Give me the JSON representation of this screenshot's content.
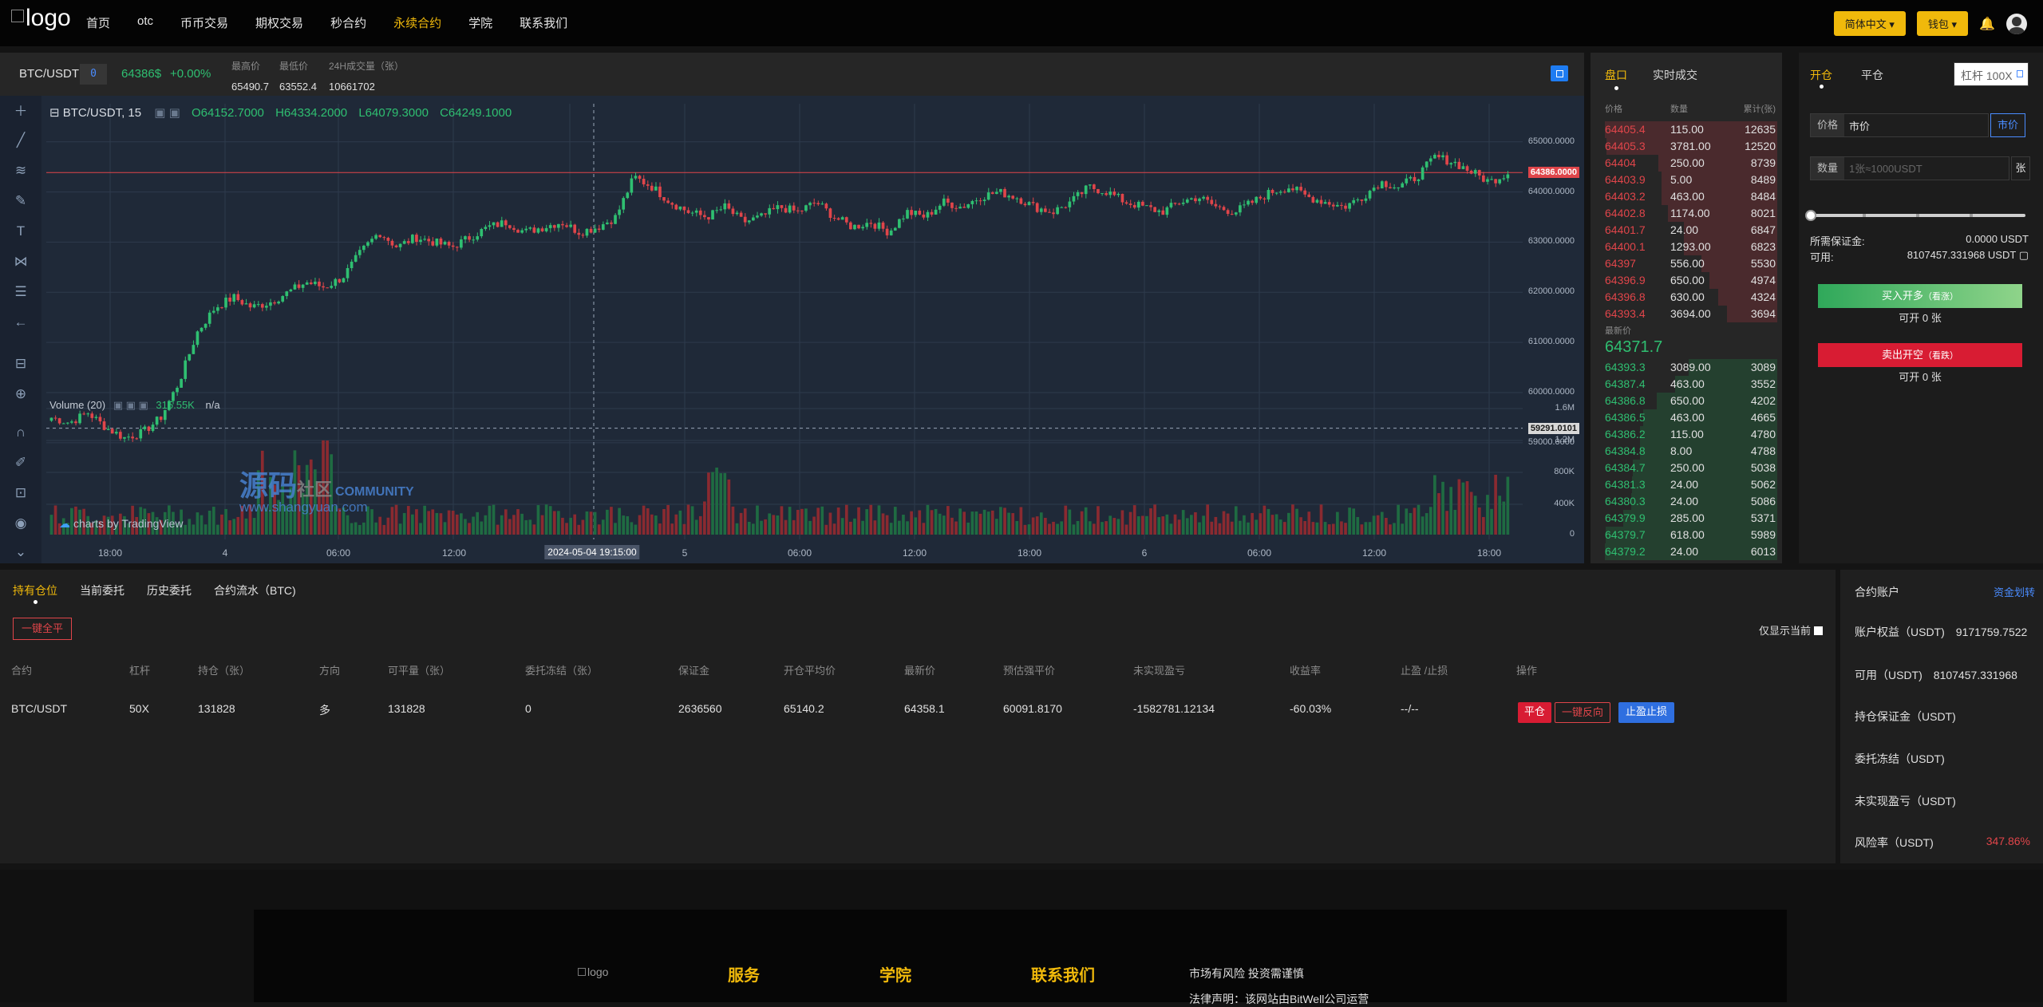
{
  "nav": {
    "logo_text": "logo",
    "items": [
      "首页",
      "otc",
      "币币交易",
      "期权交易",
      "秒合约",
      "永续合约",
      "学院",
      "联系我们"
    ],
    "active_index": 5,
    "lang_button": "简体中文",
    "wallet_button": "钱包"
  },
  "ticker": {
    "pair": "BTC/USDT",
    "tag": "0",
    "price": "64386$",
    "change": "+0.00%",
    "high_label": "最高价",
    "high_value": "65490.7",
    "low_label": "最低价",
    "low_value": "63552.4",
    "vol_label": "24H成交量（张）",
    "vol_value": "10661702"
  },
  "chart": {
    "symbol": "BTC/USDT, 15",
    "open": "O64152.7000",
    "high": "H64334.2000",
    "low": "L64079.3000",
    "close": "C64249.1000",
    "volume_label": "Volume (20)",
    "volume_value": "315.55K",
    "volume_na": "n/a",
    "attribution": "charts by TradingView",
    "watermark_cn": "源码",
    "watermark_cn2": "社区",
    "watermark_en": "COMMUNITY",
    "watermark_url": "www.shangyuan.com",
    "price_ticks": [
      "65000.0000",
      "64000.0000",
      "63000.0000",
      "62000.0000",
      "61000.0000",
      "60000.0000",
      "59000.0000"
    ],
    "last_tag": "64386.0000",
    "cross_tag": "59291.0101",
    "vol_ticks": [
      "1.6M",
      "1.2M",
      "800K",
      "400K",
      "0"
    ],
    "time_ticks": [
      "18:00",
      "4",
      "06:00",
      "12:00",
      "2024-05-04 19:15:00",
      "5",
      "06:00",
      "12:00",
      "18:00",
      "6",
      "06:00",
      "12:00",
      "18:00"
    ]
  },
  "chart_data": {
    "type": "candlestick",
    "title": "BTC/USDT, 15",
    "ylim": [
      58600,
      65600
    ],
    "volume_ylim": [
      0,
      1800000
    ],
    "close_series": [
      59500,
      59400,
      59600,
      59300,
      59100,
      59200,
      59500,
      60200,
      61200,
      61700,
      61900,
      61700,
      61800,
      62000,
      62200,
      62100,
      62300,
      62800,
      63200,
      62900,
      63100,
      63000,
      62900,
      63100,
      63300,
      63400,
      63200,
      63300,
      63400,
      63200,
      63300,
      63500,
      64300,
      64100,
      63800,
      63600,
      63500,
      63700,
      63400,
      63500,
      63700,
      63600,
      63800,
      63500,
      63300,
      63400,
      63200,
      63600,
      63500,
      63800,
      63700,
      63900,
      64000,
      63900,
      63700,
      63600,
      63800,
      64100,
      64000,
      63800,
      63700,
      63600,
      63800,
      63900,
      63700,
      63600,
      63800,
      64000,
      64100,
      63900,
      63800,
      63700,
      63900,
      64200,
      64100,
      64300,
      64700,
      64600,
      64400,
      64200,
      64382
    ]
  },
  "orderbook": {
    "tab_book": "盘口",
    "tab_trades": "实时成交",
    "col_price": "价格",
    "col_qty": "数量",
    "col_cum": "累计(张)",
    "asks": [
      {
        "p": "64405.4",
        "q": "115.00",
        "c": "12635"
      },
      {
        "p": "64405.3",
        "q": "3781.00",
        "c": "12520"
      },
      {
        "p": "64404",
        "q": "250.00",
        "c": "8739"
      },
      {
        "p": "64403.9",
        "q": "5.00",
        "c": "8489"
      },
      {
        "p": "64403.2",
        "q": "463.00",
        "c": "8484"
      },
      {
        "p": "64402.8",
        "q": "1174.00",
        "c": "8021"
      },
      {
        "p": "64401.7",
        "q": "24.00",
        "c": "6847"
      },
      {
        "p": "64400.1",
        "q": "1293.00",
        "c": "6823"
      },
      {
        "p": "64397",
        "q": "556.00",
        "c": "5530"
      },
      {
        "p": "64396.9",
        "q": "650.00",
        "c": "4974"
      },
      {
        "p": "64396.8",
        "q": "630.00",
        "c": "4324"
      },
      {
        "p": "64393.4",
        "q": "3694.00",
        "c": "3694"
      }
    ],
    "last_label": "最新价",
    "last_price": "64371.7",
    "bids": [
      {
        "p": "64393.3",
        "q": "3089.00",
        "c": "3089"
      },
      {
        "p": "64387.4",
        "q": "463.00",
        "c": "3552"
      },
      {
        "p": "64386.8",
        "q": "650.00",
        "c": "4202"
      },
      {
        "p": "64386.5",
        "q": "463.00",
        "c": "4665"
      },
      {
        "p": "64386.2",
        "q": "115.00",
        "c": "4780"
      },
      {
        "p": "64384.8",
        "q": "8.00",
        "c": "4788"
      },
      {
        "p": "64384.7",
        "q": "250.00",
        "c": "5038"
      },
      {
        "p": "64381.3",
        "q": "24.00",
        "c": "5062"
      },
      {
        "p": "64380.3",
        "q": "24.00",
        "c": "5086"
      },
      {
        "p": "64379.9",
        "q": "285.00",
        "c": "5371"
      },
      {
        "p": "64379.7",
        "q": "618.00",
        "c": "5989"
      },
      {
        "p": "64379.2",
        "q": "24.00",
        "c": "6013"
      }
    ]
  },
  "trade": {
    "tab_open": "开仓",
    "tab_close": "平仓",
    "leverage_placeholder": "杠杆 100X",
    "price_label": "价格",
    "price_value": "市价",
    "market_btn": "市价",
    "qty_label": "数量",
    "qty_placeholder": "1张≈1000USDT",
    "qty_unit": "张",
    "margin_label": "所需保证金:",
    "margin_value": "0.0000 USDT",
    "avail_label": "可用:",
    "avail_value": "8107457.331968 USDT",
    "buy_label": "买入开多",
    "buy_sub": "（看涨）",
    "buy_can": "可开 0 张",
    "sell_label": "卖出开空",
    "sell_sub": "（看跌）",
    "sell_can": "可开 0 张"
  },
  "positions": {
    "tabs": [
      "持有仓位",
      "当前委托",
      "历史委托",
      "合约流水（BTC)"
    ],
    "close_all": "一键全平",
    "only_current": "仅显示当前",
    "headers": [
      "合约",
      "杠杆",
      "持仓（张）",
      "方向",
      "可平量（张）",
      "委托冻结（张）",
      "保证金",
      "开仓平均价",
      "最新价",
      "预估强平价",
      "未实现盈亏",
      "收益率",
      "止盈 /止损",
      "操作"
    ],
    "row": [
      "BTC/USDT",
      "50X",
      "131828",
      "多",
      "131828",
      "0",
      "2636560",
      "65140.2",
      "64358.1",
      "60091.8170",
      "-1582781.12134",
      "-60.03%",
      "--/--"
    ],
    "btn_close": "平仓",
    "btn_reverse": "一键反向",
    "btn_tpsl": "止盈止损"
  },
  "account": {
    "title": "合约账户",
    "transfer": "资金划转",
    "equity_label": "账户权益（USDT)",
    "equity_value": "9171759.7522",
    "avail_label": "可用（USDT)",
    "avail_value": "8107457.331968",
    "margin_label": "持仓保证金（USDT)",
    "frozen_label": "委托冻结（USDT)",
    "upnl_label": "未实现盈亏（USDT)",
    "risk_label": "风险率（USDT)",
    "risk_value": "347.86%"
  },
  "footer": {
    "logo_alt": "logo",
    "col1": "服务",
    "col2": "学院",
    "col3": "联系我们",
    "note1": "市场有风险 投资需谨慎",
    "note2": "法律声明：该网站由BitWell公司运营"
  },
  "colors": {
    "accent": "#f0b90b",
    "up": "#2fbf71",
    "down": "#e0454a",
    "link": "#4a8cff"
  }
}
